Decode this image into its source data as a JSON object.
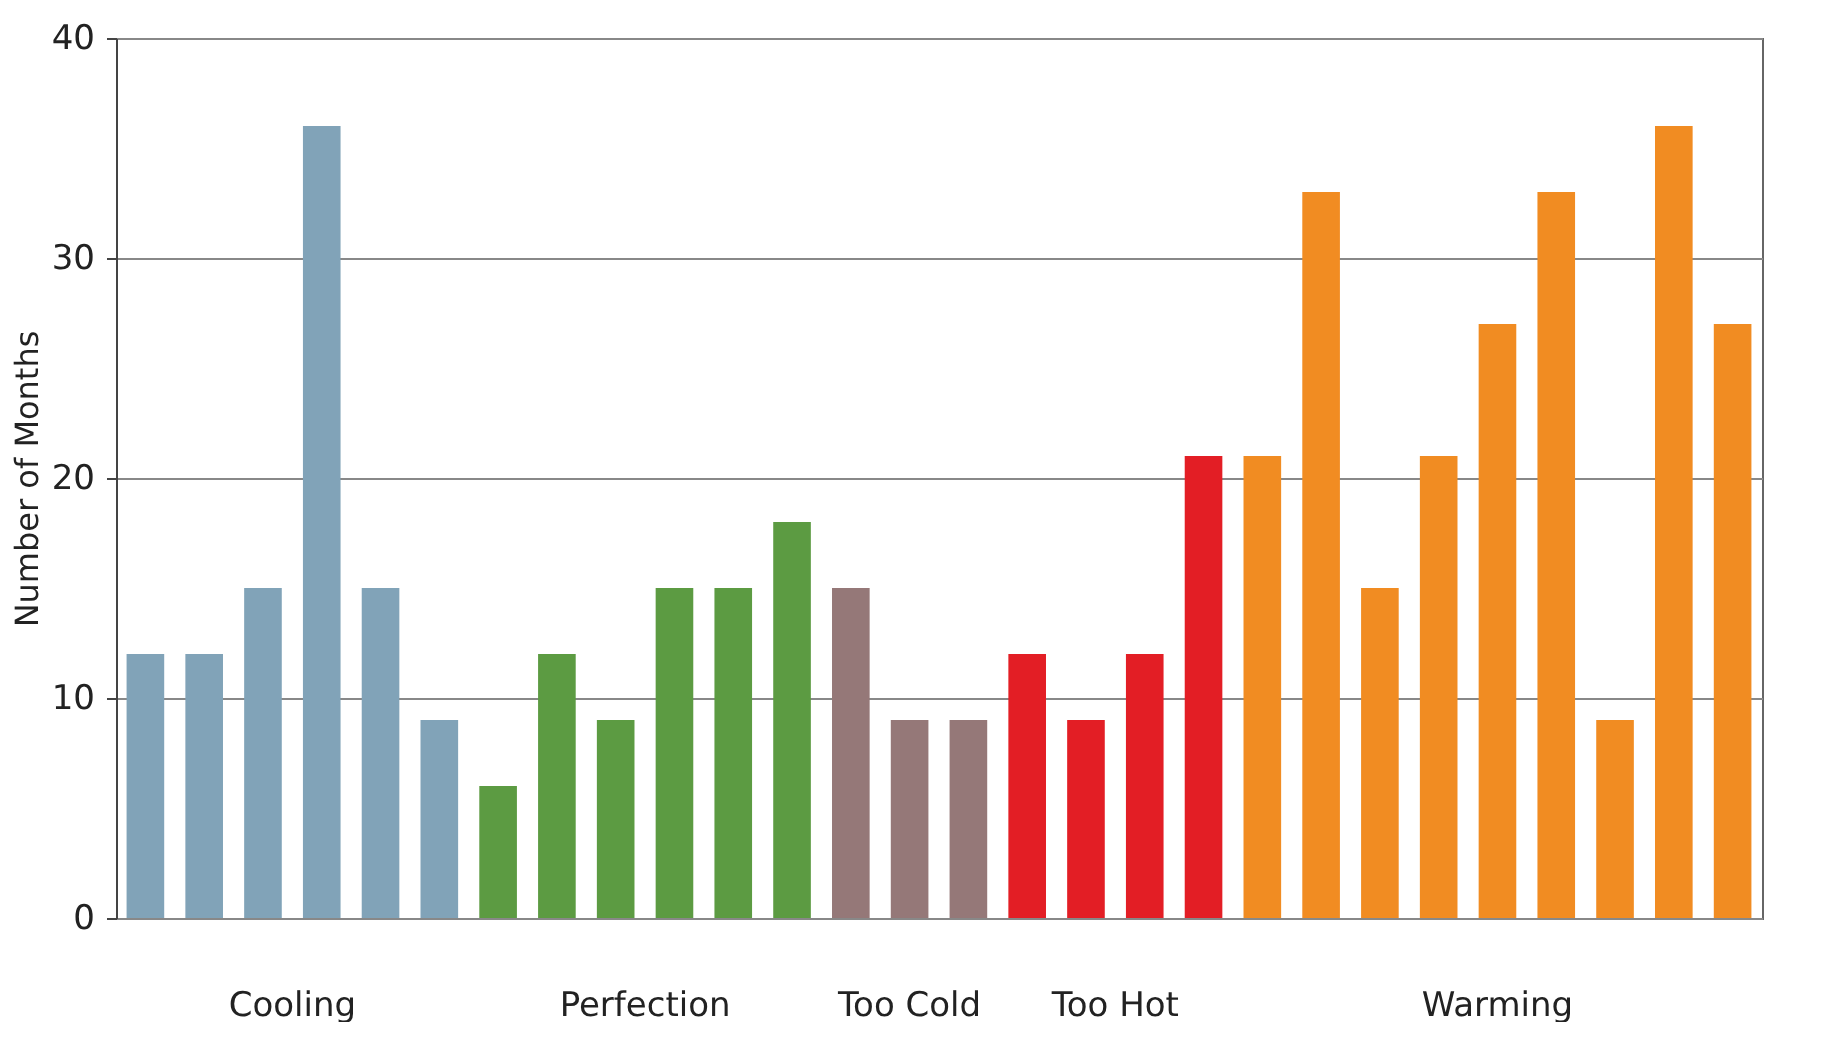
{
  "chart_data": {
    "type": "bar",
    "ylabel": "Number of Months",
    "categories": [
      null,
      null,
      null,
      null,
      null,
      null,
      null,
      null,
      null,
      null,
      null,
      null,
      null,
      null,
      null,
      null,
      null,
      null,
      null,
      null,
      null,
      null,
      null,
      null,
      null,
      null,
      null,
      null
    ],
    "series": [
      {
        "name": "Cooling",
        "color": "#81a3b8",
        "values": [
          12,
          12,
          15,
          36,
          15,
          9,
          null,
          null,
          null,
          null,
          null,
          null,
          null,
          null,
          null,
          null,
          null,
          null,
          null,
          null,
          null,
          null,
          null,
          null,
          null,
          null,
          null,
          null
        ]
      },
      {
        "name": "Perfection",
        "color": "#5c9b42",
        "values": [
          null,
          null,
          null,
          null,
          null,
          null,
          6,
          12,
          9,
          15,
          15,
          18,
          null,
          null,
          null,
          null,
          null,
          null,
          null,
          null,
          null,
          null,
          null,
          null,
          null,
          null,
          null,
          null
        ]
      },
      {
        "name": "Too Cold",
        "color": "#957878",
        "values": [
          null,
          null,
          null,
          null,
          null,
          null,
          null,
          null,
          null,
          null,
          null,
          null,
          15,
          9,
          9,
          null,
          null,
          null,
          null,
          null,
          null,
          null,
          null,
          null,
          null,
          null,
          null,
          null
        ]
      },
      {
        "name": "Too Hot",
        "color": "#e31e25",
        "values": [
          null,
          null,
          null,
          null,
          null,
          null,
          null,
          null,
          null,
          null,
          null,
          null,
          null,
          null,
          null,
          12,
          9,
          12,
          21,
          null,
          null,
          null,
          null,
          null,
          null,
          null,
          null,
          null
        ]
      },
      {
        "name": "Warming",
        "color": "#f18c22",
        "values": [
          null,
          null,
          null,
          null,
          null,
          null,
          null,
          null,
          null,
          null,
          null,
          null,
          null,
          null,
          null,
          null,
          null,
          null,
          null,
          21,
          33,
          15,
          21,
          27,
          33,
          9,
          36,
          27
        ]
      }
    ],
    "ylim": [
      0,
      40
    ],
    "yticks": [
      0,
      10,
      20,
      30,
      40
    ],
    "grid": "y",
    "tick_labels": "y"
  }
}
